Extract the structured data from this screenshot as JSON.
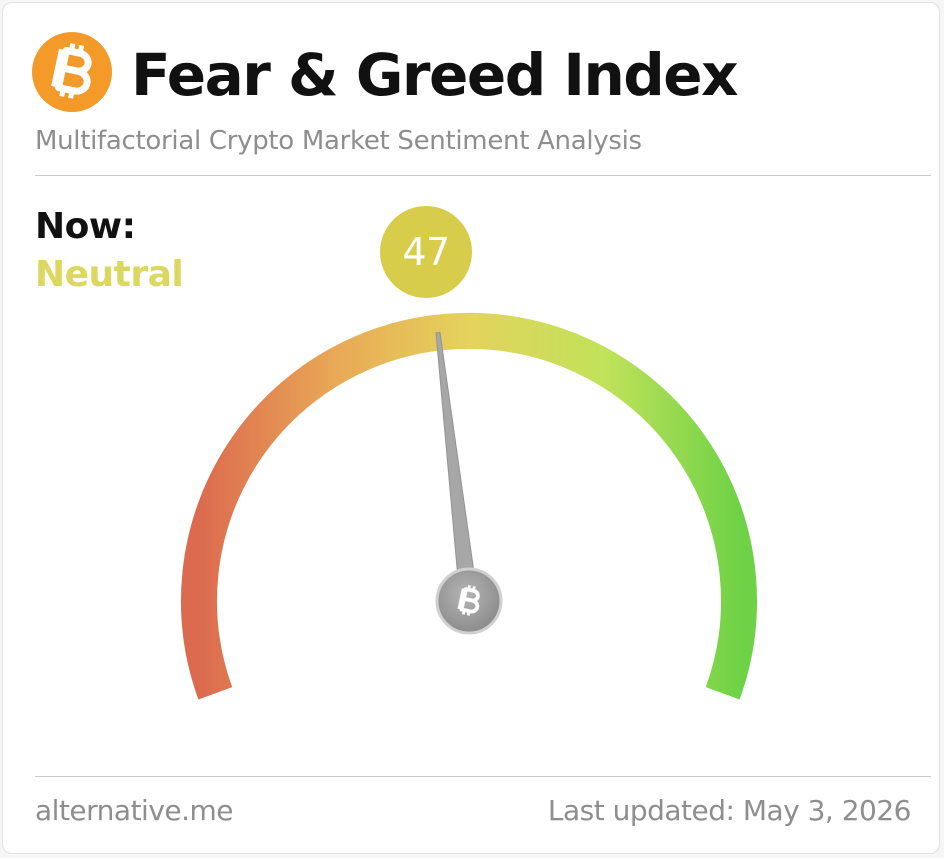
{
  "header": {
    "title": "Fear & Greed Index",
    "subtitle": "Multifactorial Crypto Market Sentiment Analysis",
    "logo_icon": "bitcoin-icon",
    "logo_color": "#f39a28"
  },
  "status": {
    "now_label": "Now:",
    "classification": "Neutral",
    "classification_color": "#dcd760"
  },
  "gauge": {
    "value": 47,
    "value_label": "47",
    "min": 0,
    "max": 100,
    "bubble_color": "#d7cd4b",
    "hub_icon": "bitcoin-icon",
    "gradient": [
      "#dc6a4f",
      "#e9a856",
      "#e4d35c",
      "#c1e25a",
      "#6fd246"
    ]
  },
  "footer": {
    "source": "alternative.me",
    "updated": "Last updated: May 3, 2026"
  }
}
